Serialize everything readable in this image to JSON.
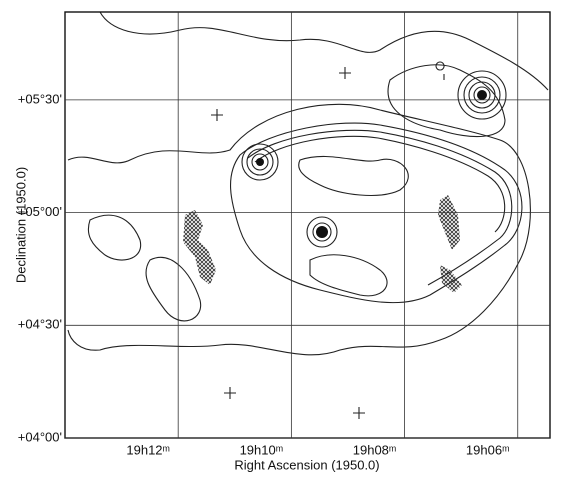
{
  "chart_data": {
    "type": "contour",
    "xlabel": "Right Ascension (1950.0)",
    "ylabel": "Declination (1950.0)",
    "xlim": [
      14,
      5.43
    ],
    "ylim": [
      4,
      5.89
    ],
    "xticks": [
      {
        "value": 12,
        "label": "19h12ᵐ"
      },
      {
        "value": 10,
        "label": "19h10ᵐ"
      },
      {
        "value": 8,
        "label": "19h08ᵐ"
      },
      {
        "value": 6,
        "label": "19h06ᵐ"
      }
    ],
    "yticks": [
      {
        "value": 4,
        "label": "+04°00'"
      },
      {
        "value": 4.5,
        "label": "+04°30'"
      },
      {
        "value": 5,
        "label": "+05°00'"
      },
      {
        "value": 5.5,
        "label": "+05°30'"
      }
    ],
    "grid": true
  }
}
